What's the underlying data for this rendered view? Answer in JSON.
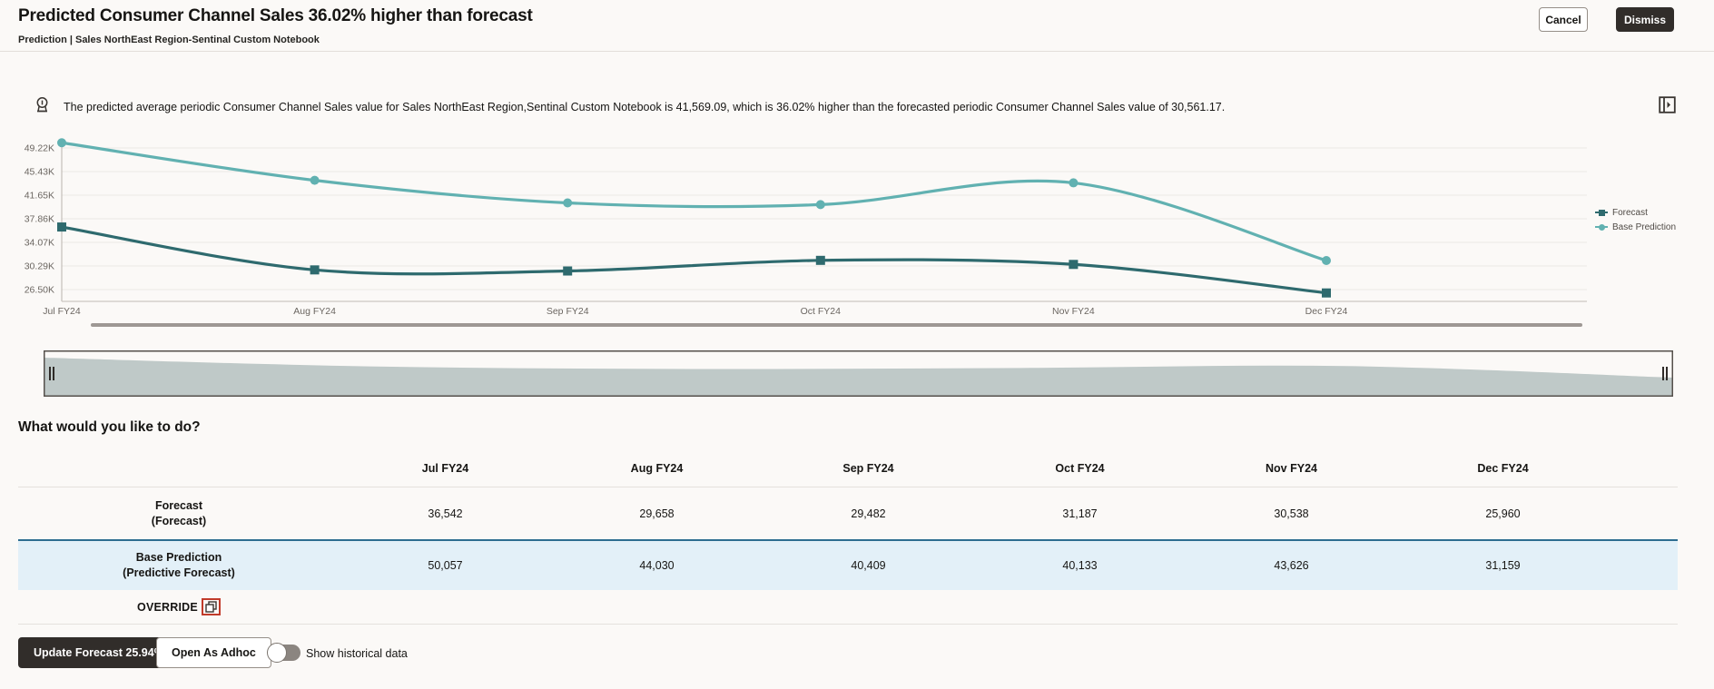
{
  "header": {
    "title": "Predicted Consumer Channel Sales 36.02% higher than forecast",
    "breadcrumb": "Prediction | Sales NorthEast Region-Sentinal Custom Notebook",
    "cancel_label": "Cancel",
    "dismiss_label": "Dismiss"
  },
  "insight": {
    "message": "The predicted average periodic Consumer Channel Sales value for Sales NorthEast Region,Sentinal Custom Notebook is 41,569.09, which is 36.02% higher than the forecasted periodic Consumer Channel Sales value of 30,561.17."
  },
  "chart_data": {
    "type": "line",
    "title": "",
    "x": [
      "Jul FY24",
      "Aug FY24",
      "Sep FY24",
      "Oct FY24",
      "Nov FY24",
      "Dec FY24"
    ],
    "series": [
      {
        "name": "Forecast",
        "marker": "square",
        "color": "#2e6a6e",
        "values": [
          36542,
          29658,
          29482,
          31187,
          30538,
          25960
        ]
      },
      {
        "name": "Base Prediction",
        "marker": "circle",
        "color": "#61b1b1",
        "values": [
          50057,
          44030,
          40409,
          40133,
          43626,
          31159
        ]
      }
    ],
    "y_ticks": [
      "49.22K",
      "45.43K",
      "41.65K",
      "37.86K",
      "34.07K",
      "30.29K",
      "26.50K"
    ],
    "y_tick_values": [
      49220,
      45430,
      41650,
      37860,
      34070,
      30290,
      26500
    ],
    "grid": true,
    "legend_position": "right"
  },
  "question": "What would you like to do?",
  "table": {
    "columns": [
      "Jul FY24",
      "Aug FY24",
      "Sep FY24",
      "Oct FY24",
      "Nov FY24",
      "Dec FY24"
    ],
    "rows": [
      {
        "label": "Forecast",
        "sublabel": "(Forecast)",
        "highlight": false,
        "values": [
          "36,542",
          "29,658",
          "29,482",
          "31,187",
          "30,538",
          "25,960"
        ]
      },
      {
        "label": "Base Prediction",
        "sublabel": "(Predictive Forecast)",
        "highlight": true,
        "values": [
          "50,057",
          "44,030",
          "40,409",
          "40,133",
          "43,626",
          "31,159"
        ]
      }
    ],
    "override_label": "OVERRIDE"
  },
  "footer": {
    "update_button": "Update Forecast 25.94%",
    "adhoc_button": "Open As Adhoc",
    "toggle_label": "Show historical data",
    "toggle_state": "off"
  },
  "colors": {
    "background": "#fbf9f7",
    "text": "#161513",
    "dark_button": "#312d2a",
    "forecast_line": "#2e6a6e",
    "base_prediction_line": "#61b1b1",
    "gridline": "#ebe9e6",
    "axis_label": "#6b6661",
    "highlight_row_bg": "#e3f0f8",
    "highlight_row_border": "#2d6d90",
    "annotation_red": "#c13b2a",
    "slider_fill": "#bfc9c8",
    "scrollbar": "#9e9894"
  }
}
